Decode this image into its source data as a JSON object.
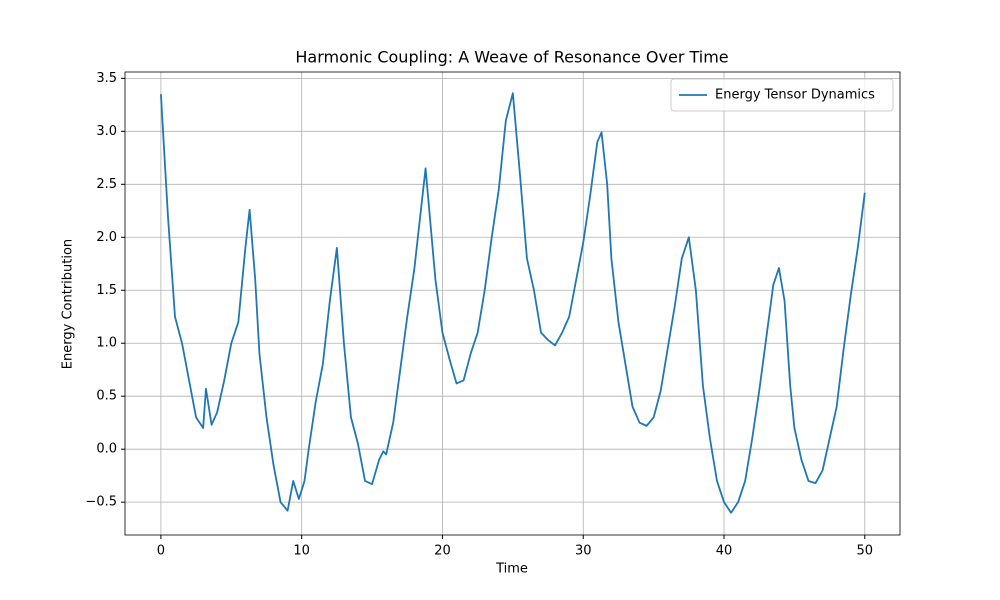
{
  "chart_data": {
    "type": "line",
    "title": "Harmonic Coupling: A Weave of Resonance Over Time",
    "x_label": "Time",
    "y_label": "Energy Contribution",
    "xlim": [
      -2.55,
      52.5
    ],
    "ylim": [
      -0.81,
      3.56
    ],
    "xticks": [
      0,
      10,
      20,
      30,
      40,
      50
    ],
    "yticks": [
      {
        "value": -0.5,
        "label": "−0.5"
      },
      {
        "value": 0,
        "label": "0.0"
      },
      0.5,
      {
        "value": 1,
        "label": "1.0"
      },
      1.5,
      {
        "value": 2,
        "label": "2.0"
      },
      2.5,
      {
        "value": 3,
        "label": "3.0"
      },
      3.5
    ],
    "grid": true,
    "legend": "upper right",
    "x": [
      0,
      0.5,
      1,
      1.5,
      2,
      2.5,
      3,
      3.2,
      3.6,
      4,
      4.5,
      5,
      5.5,
      6,
      6.3,
      6.7,
      7,
      7.5,
      8,
      8.5,
      9,
      9.4,
      9.8,
      10.2,
      10.5,
      11,
      11.5,
      12,
      12.5,
      13,
      13.5,
      14,
      14.5,
      15,
      15.5,
      15.8,
      16,
      16.5,
      17,
      17.5,
      18,
      18.8,
      19.5,
      20,
      20.5,
      21,
      21.5,
      22,
      22.5,
      23,
      23.5,
      24,
      24.5,
      25,
      25.5,
      26,
      26.5,
      27,
      27.5,
      28,
      28.5,
      29,
      29.5,
      30,
      30.5,
      31,
      31.3,
      31.7,
      32,
      32.5,
      33,
      33.5,
      34,
      34.5,
      35,
      35.5,
      36,
      36.5,
      37,
      37.5,
      38,
      38.5,
      39,
      39.5,
      40,
      40.5,
      41,
      41.5,
      42,
      42.5,
      43,
      43.5,
      43.9,
      44.3,
      44.7,
      45,
      45.5,
      46,
      46.5,
      47,
      47.5,
      48,
      48.5,
      49,
      49.5,
      50
    ],
    "series": [
      {
        "name": "Energy Tensor Dynamics",
        "color": "#1f77b4",
        "values": [
          3.35,
          2.2,
          1.25,
          1.0,
          0.65,
          0.3,
          0.2,
          0.57,
          0.23,
          0.35,
          0.65,
          1.0,
          1.2,
          1.9,
          2.26,
          1.6,
          0.9,
          0.3,
          -0.15,
          -0.5,
          -0.58,
          -0.3,
          -0.47,
          -0.3,
          0,
          0.45,
          0.8,
          1.4,
          1.9,
          1.0,
          0.3,
          0.05,
          -0.3,
          -0.33,
          -0.1,
          -0.02,
          -0.05,
          0.25,
          0.75,
          1.25,
          1.7,
          2.65,
          1.6,
          1.1,
          0.85,
          0.62,
          0.65,
          0.9,
          1.1,
          1.5,
          2.0,
          2.45,
          3.1,
          3.36,
          2.6,
          1.8,
          1.5,
          1.1,
          1.03,
          0.98,
          1.1,
          1.25,
          1.6,
          1.95,
          2.4,
          2.9,
          2.99,
          2.5,
          1.8,
          1.2,
          0.8,
          0.4,
          0.25,
          0.22,
          0.3,
          0.55,
          0.95,
          1.35,
          1.8,
          2.0,
          1.5,
          0.6,
          0.1,
          -0.3,
          -0.5,
          -0.6,
          -0.5,
          -0.3,
          0.1,
          0.55,
          1.05,
          1.55,
          1.71,
          1.4,
          0.6,
          0.2,
          -0.1,
          -0.3,
          -0.32,
          -0.2,
          0.1,
          0.4,
          0.95,
          1.45,
          1.9,
          2.42
        ]
      }
    ]
  }
}
